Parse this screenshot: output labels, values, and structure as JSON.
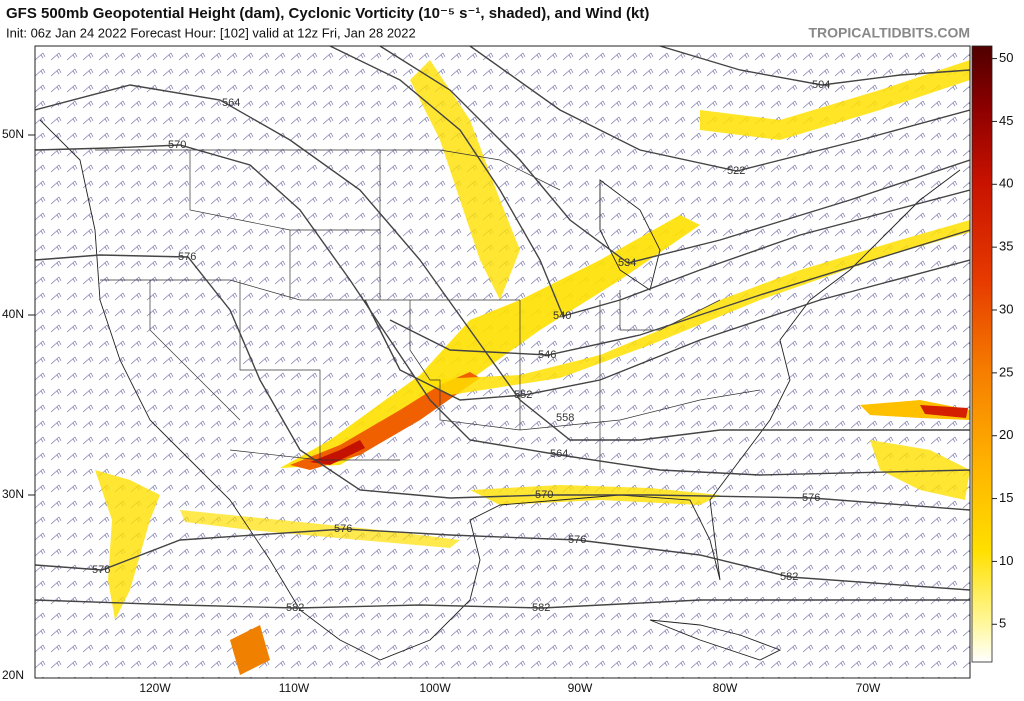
{
  "header": {
    "title": "GFS 500mb Geopotential Height (dam), Cyclonic Vorticity (10⁻⁵ s⁻¹, shaded), and Wind (kt)",
    "subtitle": "Init: 06z Jan 24 2022   Forecast Hour: [102]   valid at 12z Fri, Jan 28 2022",
    "credit": "TROPICALTIDBITS.COM"
  },
  "map": {
    "lat_labels": [
      "50N",
      "40N",
      "30N",
      "20N"
    ],
    "lon_labels": [
      "120W",
      "110W",
      "100W",
      "90W",
      "80W",
      "70W"
    ],
    "contour_labels": [
      "564",
      "570",
      "576",
      "504",
      "522",
      "534",
      "540",
      "546",
      "552",
      "558",
      "564",
      "570",
      "576",
      "576",
      "576",
      "576",
      "582",
      "582",
      "582"
    ]
  },
  "colorbar": {
    "lim": [
      2,
      51
    ],
    "ticks": [
      5,
      10,
      15,
      20,
      25,
      30,
      35,
      40,
      45,
      50
    ]
  }
}
